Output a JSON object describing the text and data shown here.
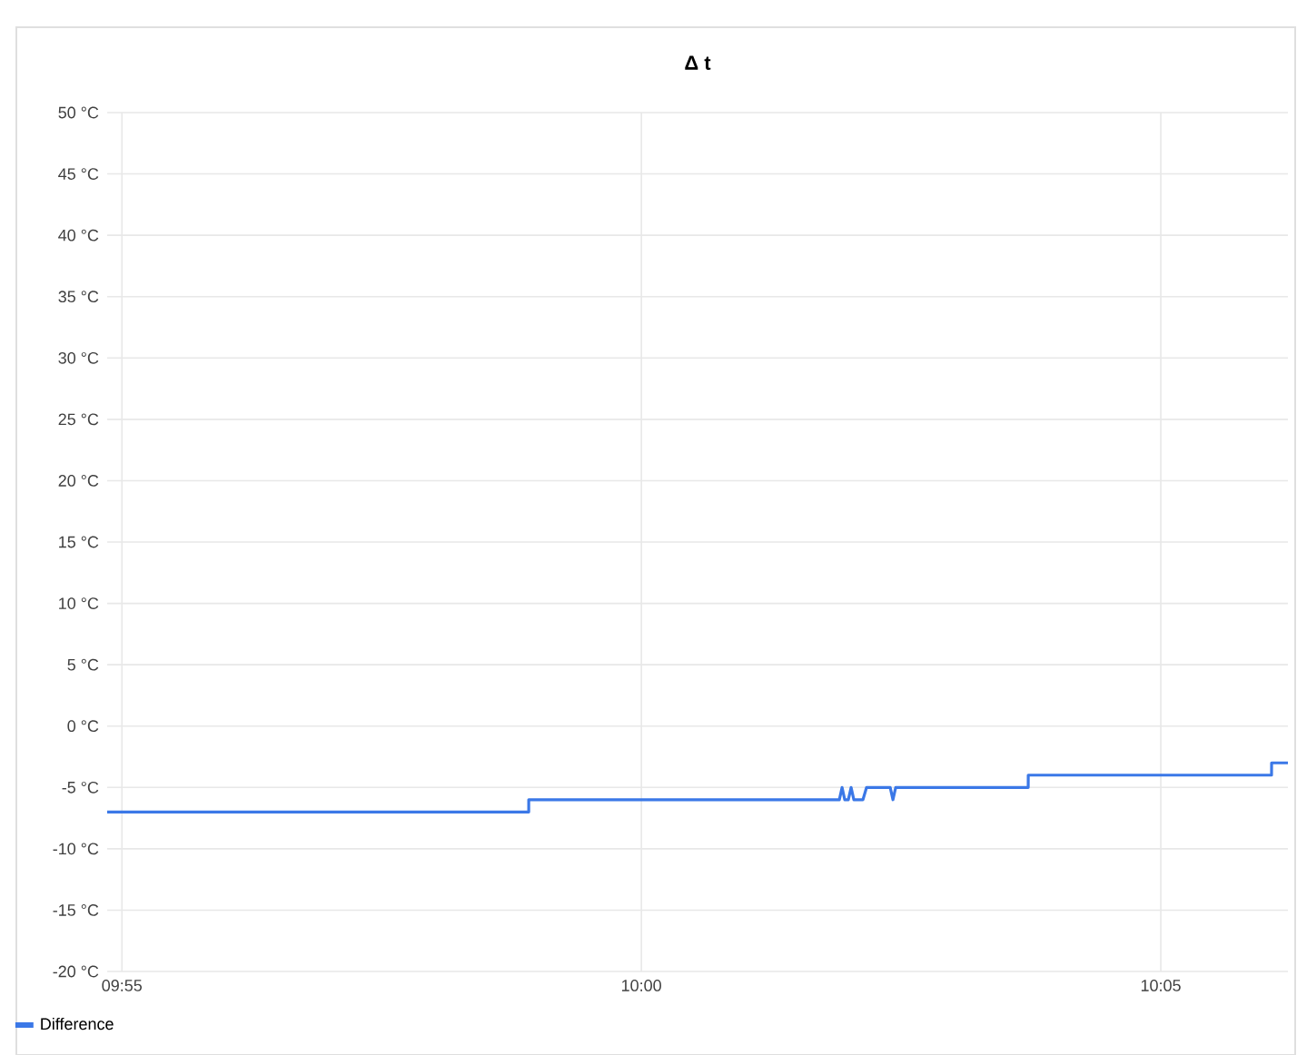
{
  "chart_data": {
    "type": "line",
    "title": "Δ t",
    "x": [
      9.9143,
      9.98193,
      9.98193,
      10.03176,
      10.0322,
      10.03263,
      10.0332,
      10.03365,
      10.03409,
      10.03555,
      10.03613,
      10.03992,
      10.04036,
      10.0408,
      10.06206,
      10.06207,
      10.1011,
      10.10111,
      10.10373
    ],
    "series": [
      {
        "name": "Difference",
        "color": "#3b78e7",
        "values": [
          -7,
          -7,
          -6,
          -6,
          -5,
          -6,
          -6,
          -5,
          -6,
          -6,
          -5,
          -5,
          -6,
          -5,
          -5,
          -4,
          -4,
          -3,
          -3
        ]
      }
    ],
    "xlim": [
      9.9143,
      10.10373
    ],
    "xticks": [
      {
        "value": 9.916667,
        "label": "09:55"
      },
      {
        "value": 10,
        "label": "10:00"
      },
      {
        "value": 10.083333,
        "label": "10:05"
      }
    ],
    "ylim": [
      -20,
      50
    ],
    "yticks": [
      {
        "value": -20,
        "label": "-20 °C"
      },
      {
        "value": -15,
        "label": "-15 °C"
      },
      {
        "value": -10,
        "label": "-10 °C"
      },
      {
        "value": -5,
        "label": "-5 °C"
      },
      {
        "value": 0,
        "label": "0 °C"
      },
      {
        "value": 5,
        "label": "5 °C"
      },
      {
        "value": 10,
        "label": "10 °C"
      },
      {
        "value": 15,
        "label": "15 °C"
      },
      {
        "value": 20,
        "label": "20 °C"
      },
      {
        "value": 25,
        "label": "25 °C"
      },
      {
        "value": 30,
        "label": "30 °C"
      },
      {
        "value": 35,
        "label": "35 °C"
      },
      {
        "value": 40,
        "label": "40 °C"
      },
      {
        "value": 45,
        "label": "45 °C"
      },
      {
        "value": 50,
        "label": "50 °C"
      }
    ],
    "grid": true,
    "legend": "bottom left",
    "marker": "none",
    "line_style": "solid"
  }
}
